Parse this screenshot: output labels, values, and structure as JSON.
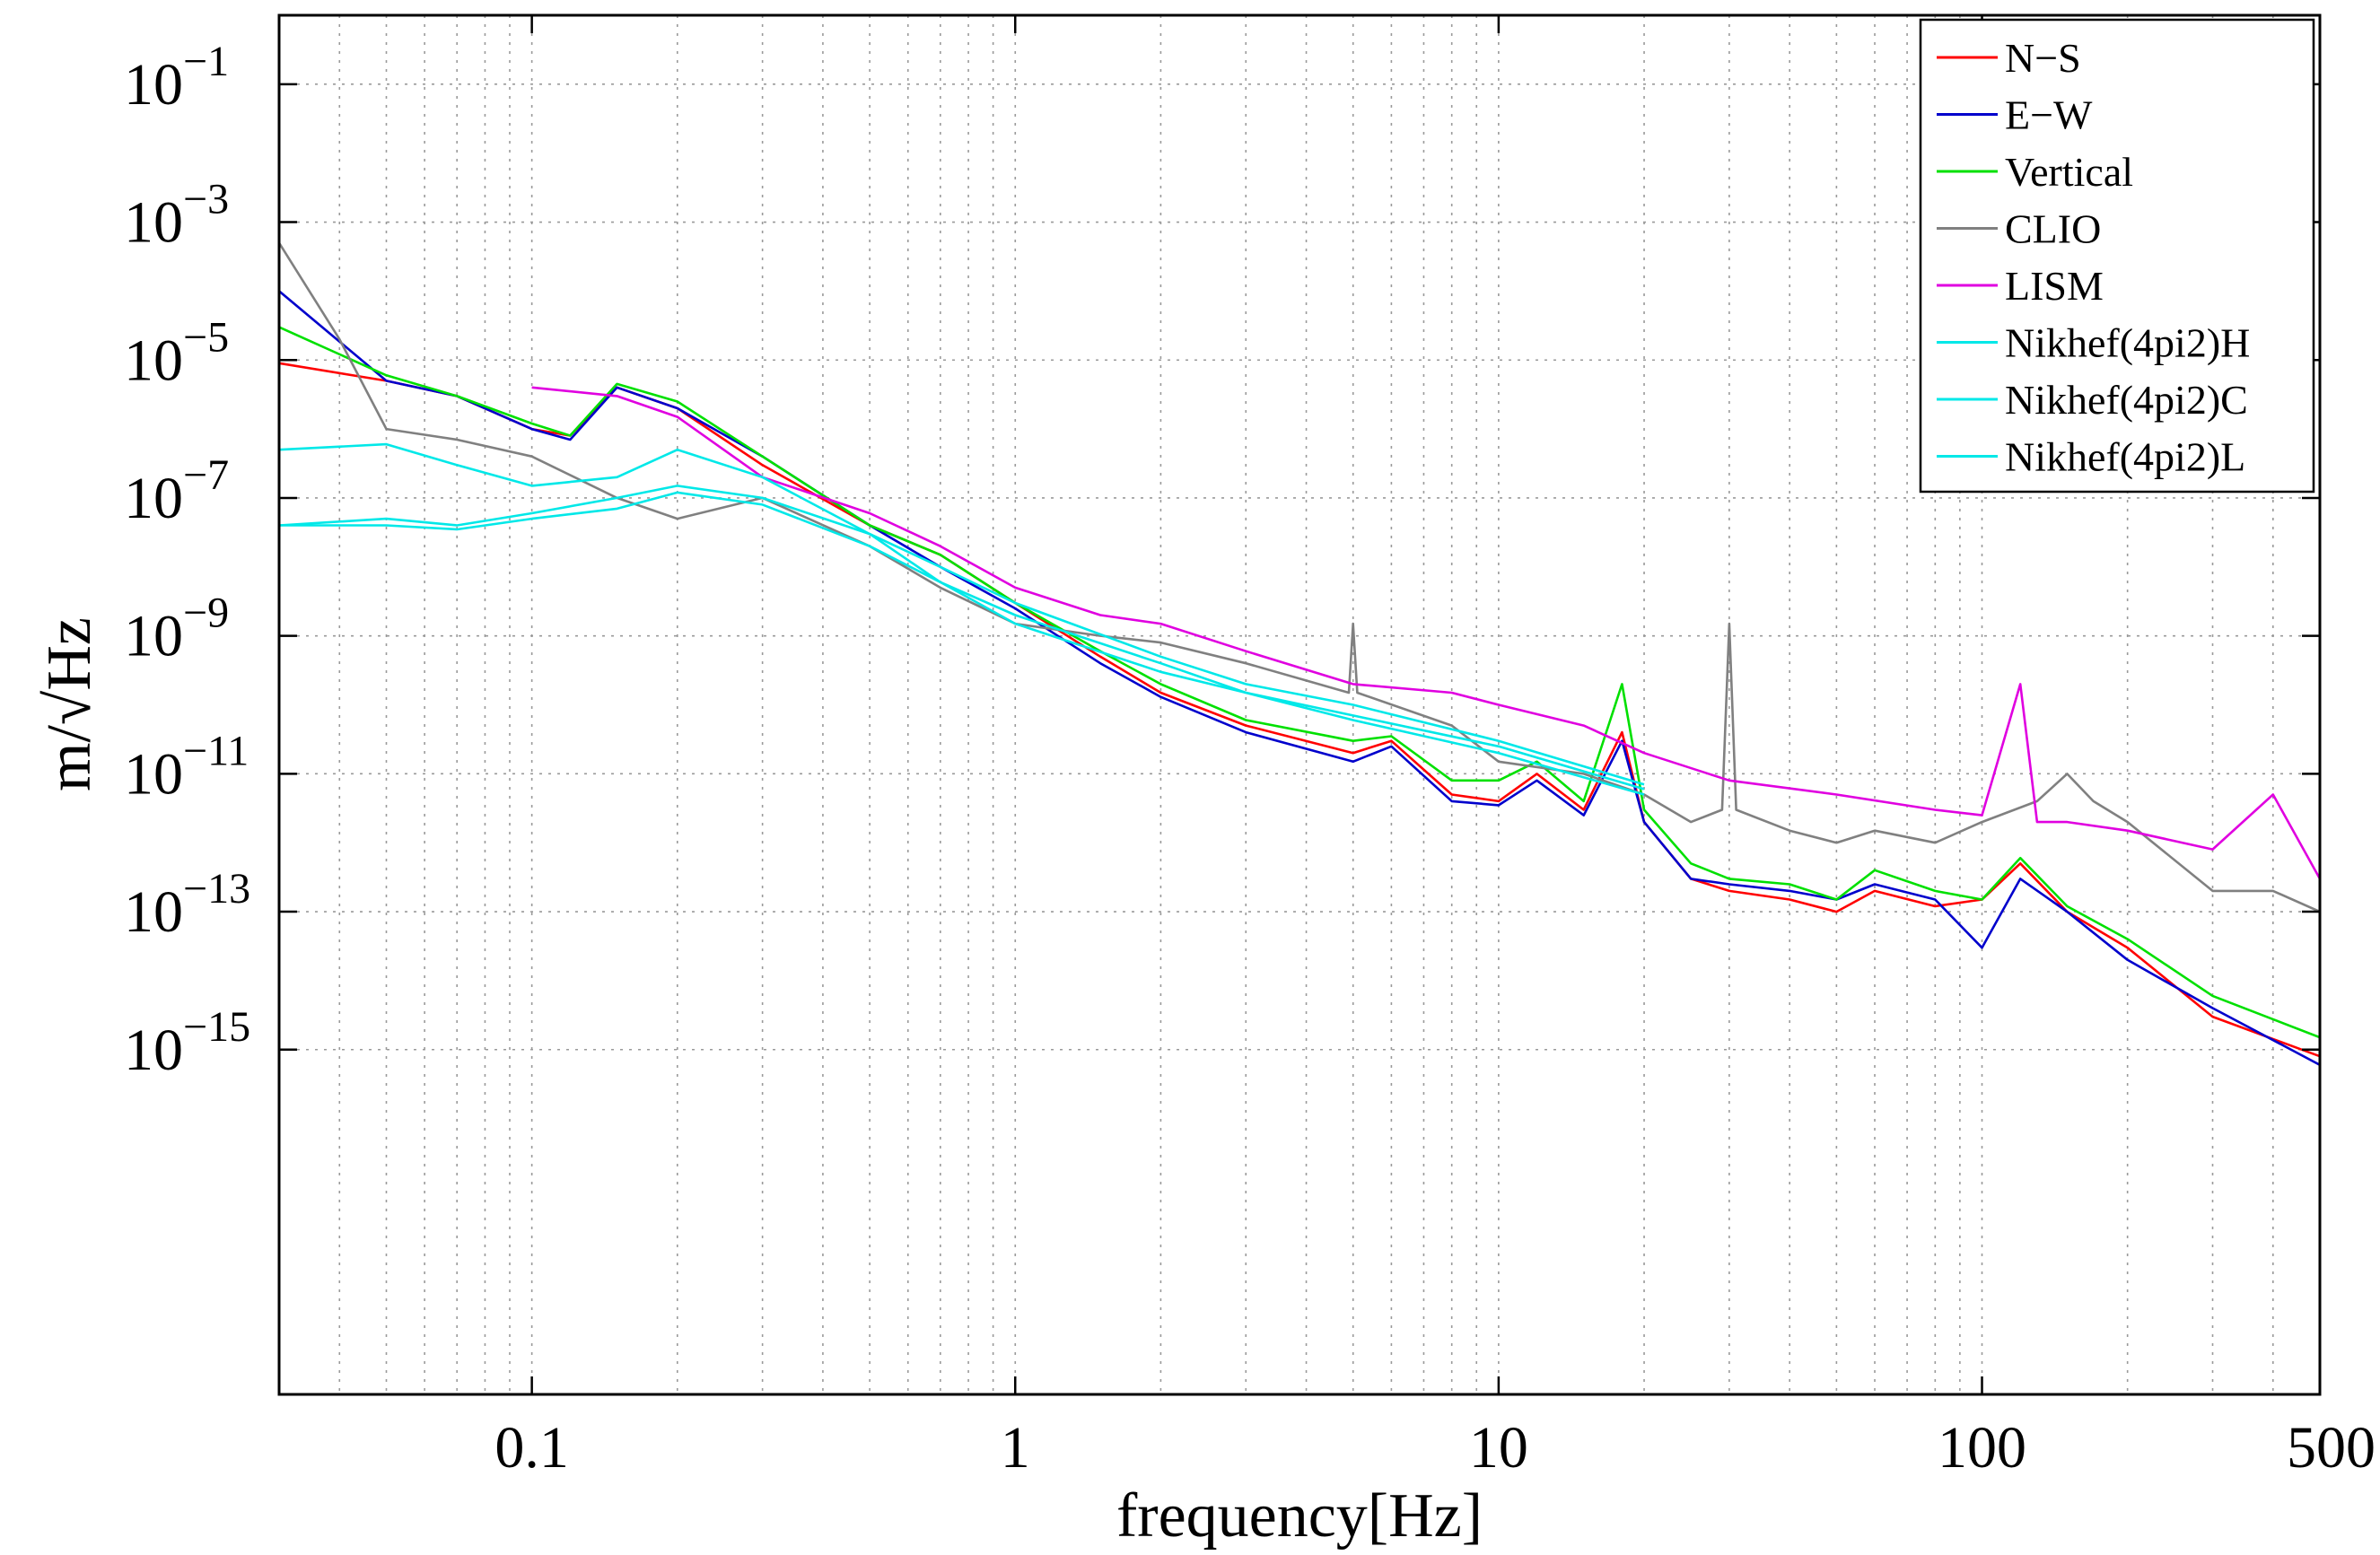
{
  "chart_data": {
    "type": "line",
    "xlabel": "frequency[Hz]",
    "ylabel": "m/√Hz",
    "xscale": "log",
    "yscale": "log",
    "xlim": [
      0.03,
      500
    ],
    "ylim": [
      1e-20,
      1
    ],
    "grid": true,
    "legend_position": "top-right",
    "x_ticks": [
      {
        "value": 0.1,
        "label": "0.1"
      },
      {
        "value": 1,
        "label": "1"
      },
      {
        "value": 10,
        "label": "10"
      },
      {
        "value": 100,
        "label": "100"
      },
      {
        "value": 500,
        "label": "500"
      }
    ],
    "y_ticks": [
      {
        "value": 0.1,
        "base": "10",
        "exp": "−1"
      },
      {
        "value": 0.001,
        "base": "10",
        "exp": "−3"
      },
      {
        "value": 1e-05,
        "base": "10",
        "exp": "−5"
      },
      {
        "value": 1e-07,
        "base": "10",
        "exp": "−7"
      },
      {
        "value": 1e-09,
        "base": "10",
        "exp": "−9"
      },
      {
        "value": 1e-11,
        "base": "10",
        "exp": "−11"
      },
      {
        "value": 1e-13,
        "base": "10",
        "exp": "−13"
      },
      {
        "value": 1e-15,
        "base": "10",
        "exp": "−15"
      }
    ],
    "series": [
      {
        "name": "N−S",
        "color": "#ff0000",
        "x": [
          0.03,
          0.05,
          0.07,
          0.1,
          0.12,
          0.15,
          0.2,
          0.3,
          0.5,
          0.7,
          1,
          1.5,
          2,
          3,
          5,
          6,
          8,
          10,
          12,
          15,
          18,
          20,
          25,
          30,
          40,
          50,
          60,
          80,
          100,
          120,
          150,
          200,
          300,
          500
        ],
        "y": [
          9e-06,
          5e-06,
          3e-06,
          1e-06,
          8e-07,
          4e-06,
          2e-06,
          3e-07,
          4e-08,
          1.5e-08,
          3e-09,
          5e-10,
          1.5e-10,
          5e-11,
          2e-11,
          3e-11,
          5e-12,
          4e-12,
          1e-11,
          3e-12,
          4e-11,
          2e-12,
          3e-13,
          2e-13,
          1.5e-13,
          1e-13,
          2e-13,
          1.2e-13,
          1.5e-13,
          5e-13,
          1e-13,
          3e-14,
          3e-15,
          8e-16
        ]
      },
      {
        "name": "E−W",
        "color": "#0000cc",
        "x": [
          0.03,
          0.05,
          0.07,
          0.1,
          0.12,
          0.15,
          0.2,
          0.3,
          0.5,
          0.7,
          1,
          1.5,
          2,
          3,
          5,
          6,
          8,
          10,
          12,
          15,
          18,
          20,
          25,
          30,
          40,
          50,
          60,
          80,
          100,
          120,
          150,
          200,
          300,
          500
        ],
        "y": [
          0.0001,
          5e-06,
          3e-06,
          1e-06,
          7e-07,
          4e-06,
          2e-06,
          4e-07,
          4e-08,
          1e-08,
          2.5e-09,
          4e-10,
          1.3e-10,
          4e-11,
          1.5e-11,
          2.5e-11,
          4e-12,
          3.5e-12,
          8e-12,
          2.5e-12,
          3e-11,
          2e-12,
          3e-13,
          2.5e-13,
          2e-13,
          1.5e-13,
          2.5e-13,
          1.5e-13,
          3e-14,
          3e-13,
          1e-13,
          2e-14,
          4e-15,
          6e-16
        ]
      },
      {
        "name": "Vertical",
        "color": "#00e000",
        "x": [
          0.03,
          0.05,
          0.07,
          0.1,
          0.12,
          0.15,
          0.2,
          0.3,
          0.5,
          0.7,
          1,
          1.5,
          2,
          3,
          5,
          6,
          8,
          10,
          12,
          15,
          18,
          20,
          25,
          30,
          40,
          50,
          60,
          80,
          100,
          120,
          150,
          200,
          300,
          500
        ],
        "y": [
          3e-05,
          6e-06,
          3e-06,
          1.2e-06,
          8e-07,
          4.5e-06,
          2.5e-06,
          4e-07,
          4e-08,
          1.5e-08,
          3e-09,
          6e-10,
          2e-10,
          6e-11,
          3e-11,
          3.5e-11,
          8e-12,
          8e-12,
          1.5e-11,
          4e-12,
          2e-10,
          3e-12,
          5e-13,
          3e-13,
          2.5e-13,
          1.5e-13,
          4e-13,
          2e-13,
          1.5e-13,
          6e-13,
          1.2e-13,
          4e-14,
          6e-15,
          1.5e-15
        ]
      },
      {
        "name": "CLIO",
        "color": "#808080",
        "x": [
          0.03,
          0.04,
          0.05,
          0.07,
          0.1,
          0.15,
          0.2,
          0.3,
          0.5,
          0.7,
          1,
          1.5,
          2,
          3,
          4.9,
          5,
          5.1,
          8,
          10,
          15,
          20,
          25,
          29,
          30,
          31,
          40,
          50,
          60,
          80,
          100,
          130,
          150,
          170,
          200,
          300,
          400,
          500
        ],
        "y": [
          0.0005,
          2e-05,
          1e-06,
          7e-07,
          4e-07,
          1e-07,
          5e-08,
          1e-07,
          2e-08,
          5e-09,
          1.5e-09,
          1e-09,
          8e-10,
          4e-10,
          1.5e-10,
          1.5e-09,
          1.5e-10,
          5e-11,
          1.5e-11,
          1e-11,
          5e-12,
          2e-12,
          3e-12,
          1.5e-09,
          3e-12,
          1.5e-12,
          1e-12,
          1.5e-12,
          1e-12,
          2e-12,
          4e-12,
          1e-11,
          4e-12,
          2e-12,
          2e-13,
          2e-13,
          1e-13
        ]
      },
      {
        "name": "LISM",
        "color": "#e000e0",
        "x": [
          0.1,
          0.15,
          0.2,
          0.3,
          0.5,
          0.7,
          1,
          1.5,
          2,
          3,
          5,
          8,
          10,
          15,
          20,
          30,
          50,
          80,
          100,
          120,
          130,
          150,
          200,
          300,
          400,
          500
        ],
        "y": [
          4e-06,
          3e-06,
          1.5e-06,
          2e-07,
          6e-08,
          2e-08,
          5e-09,
          2e-09,
          1.5e-09,
          6e-10,
          2e-10,
          1.5e-10,
          1e-10,
          5e-11,
          2e-11,
          8e-12,
          5e-12,
          3e-12,
          2.5e-12,
          2e-10,
          2e-12,
          2e-12,
          1.5e-12,
          8e-13,
          5e-12,
          3e-13
        ]
      },
      {
        "name": "Nikhef(4pi2)H",
        "color": "#00e8e8",
        "x": [
          0.03,
          0.05,
          0.07,
          0.1,
          0.15,
          0.2,
          0.3,
          0.5,
          0.7,
          1,
          2,
          3,
          5,
          10,
          20
        ],
        "y": [
          5e-07,
          6e-07,
          3e-07,
          1.5e-07,
          2e-07,
          5e-07,
          2e-07,
          3e-08,
          6e-09,
          1.5e-09,
          3e-10,
          1.5e-10,
          6e-11,
          2e-11,
          5e-12
        ]
      },
      {
        "name": "Nikhef(4pi2)C",
        "color": "#00e8e8",
        "x": [
          0.03,
          0.05,
          0.07,
          0.1,
          0.15,
          0.2,
          0.3,
          0.5,
          0.7,
          1,
          2,
          3,
          5,
          10,
          20
        ],
        "y": [
          4e-08,
          5e-08,
          4e-08,
          6e-08,
          1e-07,
          1.5e-07,
          1e-07,
          3e-08,
          1e-08,
          3e-09,
          5e-10,
          2e-10,
          1e-10,
          3e-11,
          7e-12
        ]
      },
      {
        "name": "Nikhef(4pi2)L",
        "color": "#00e8e8",
        "x": [
          0.03,
          0.05,
          0.07,
          0.1,
          0.15,
          0.2,
          0.3,
          0.5,
          0.7,
          1,
          2,
          3,
          5,
          10,
          20
        ],
        "y": [
          4e-08,
          4e-08,
          3.5e-08,
          5e-08,
          7e-08,
          1.2e-07,
          8e-08,
          2e-08,
          6e-09,
          2e-09,
          4e-10,
          1.5e-10,
          7e-11,
          2.5e-11,
          6e-12
        ]
      }
    ]
  }
}
